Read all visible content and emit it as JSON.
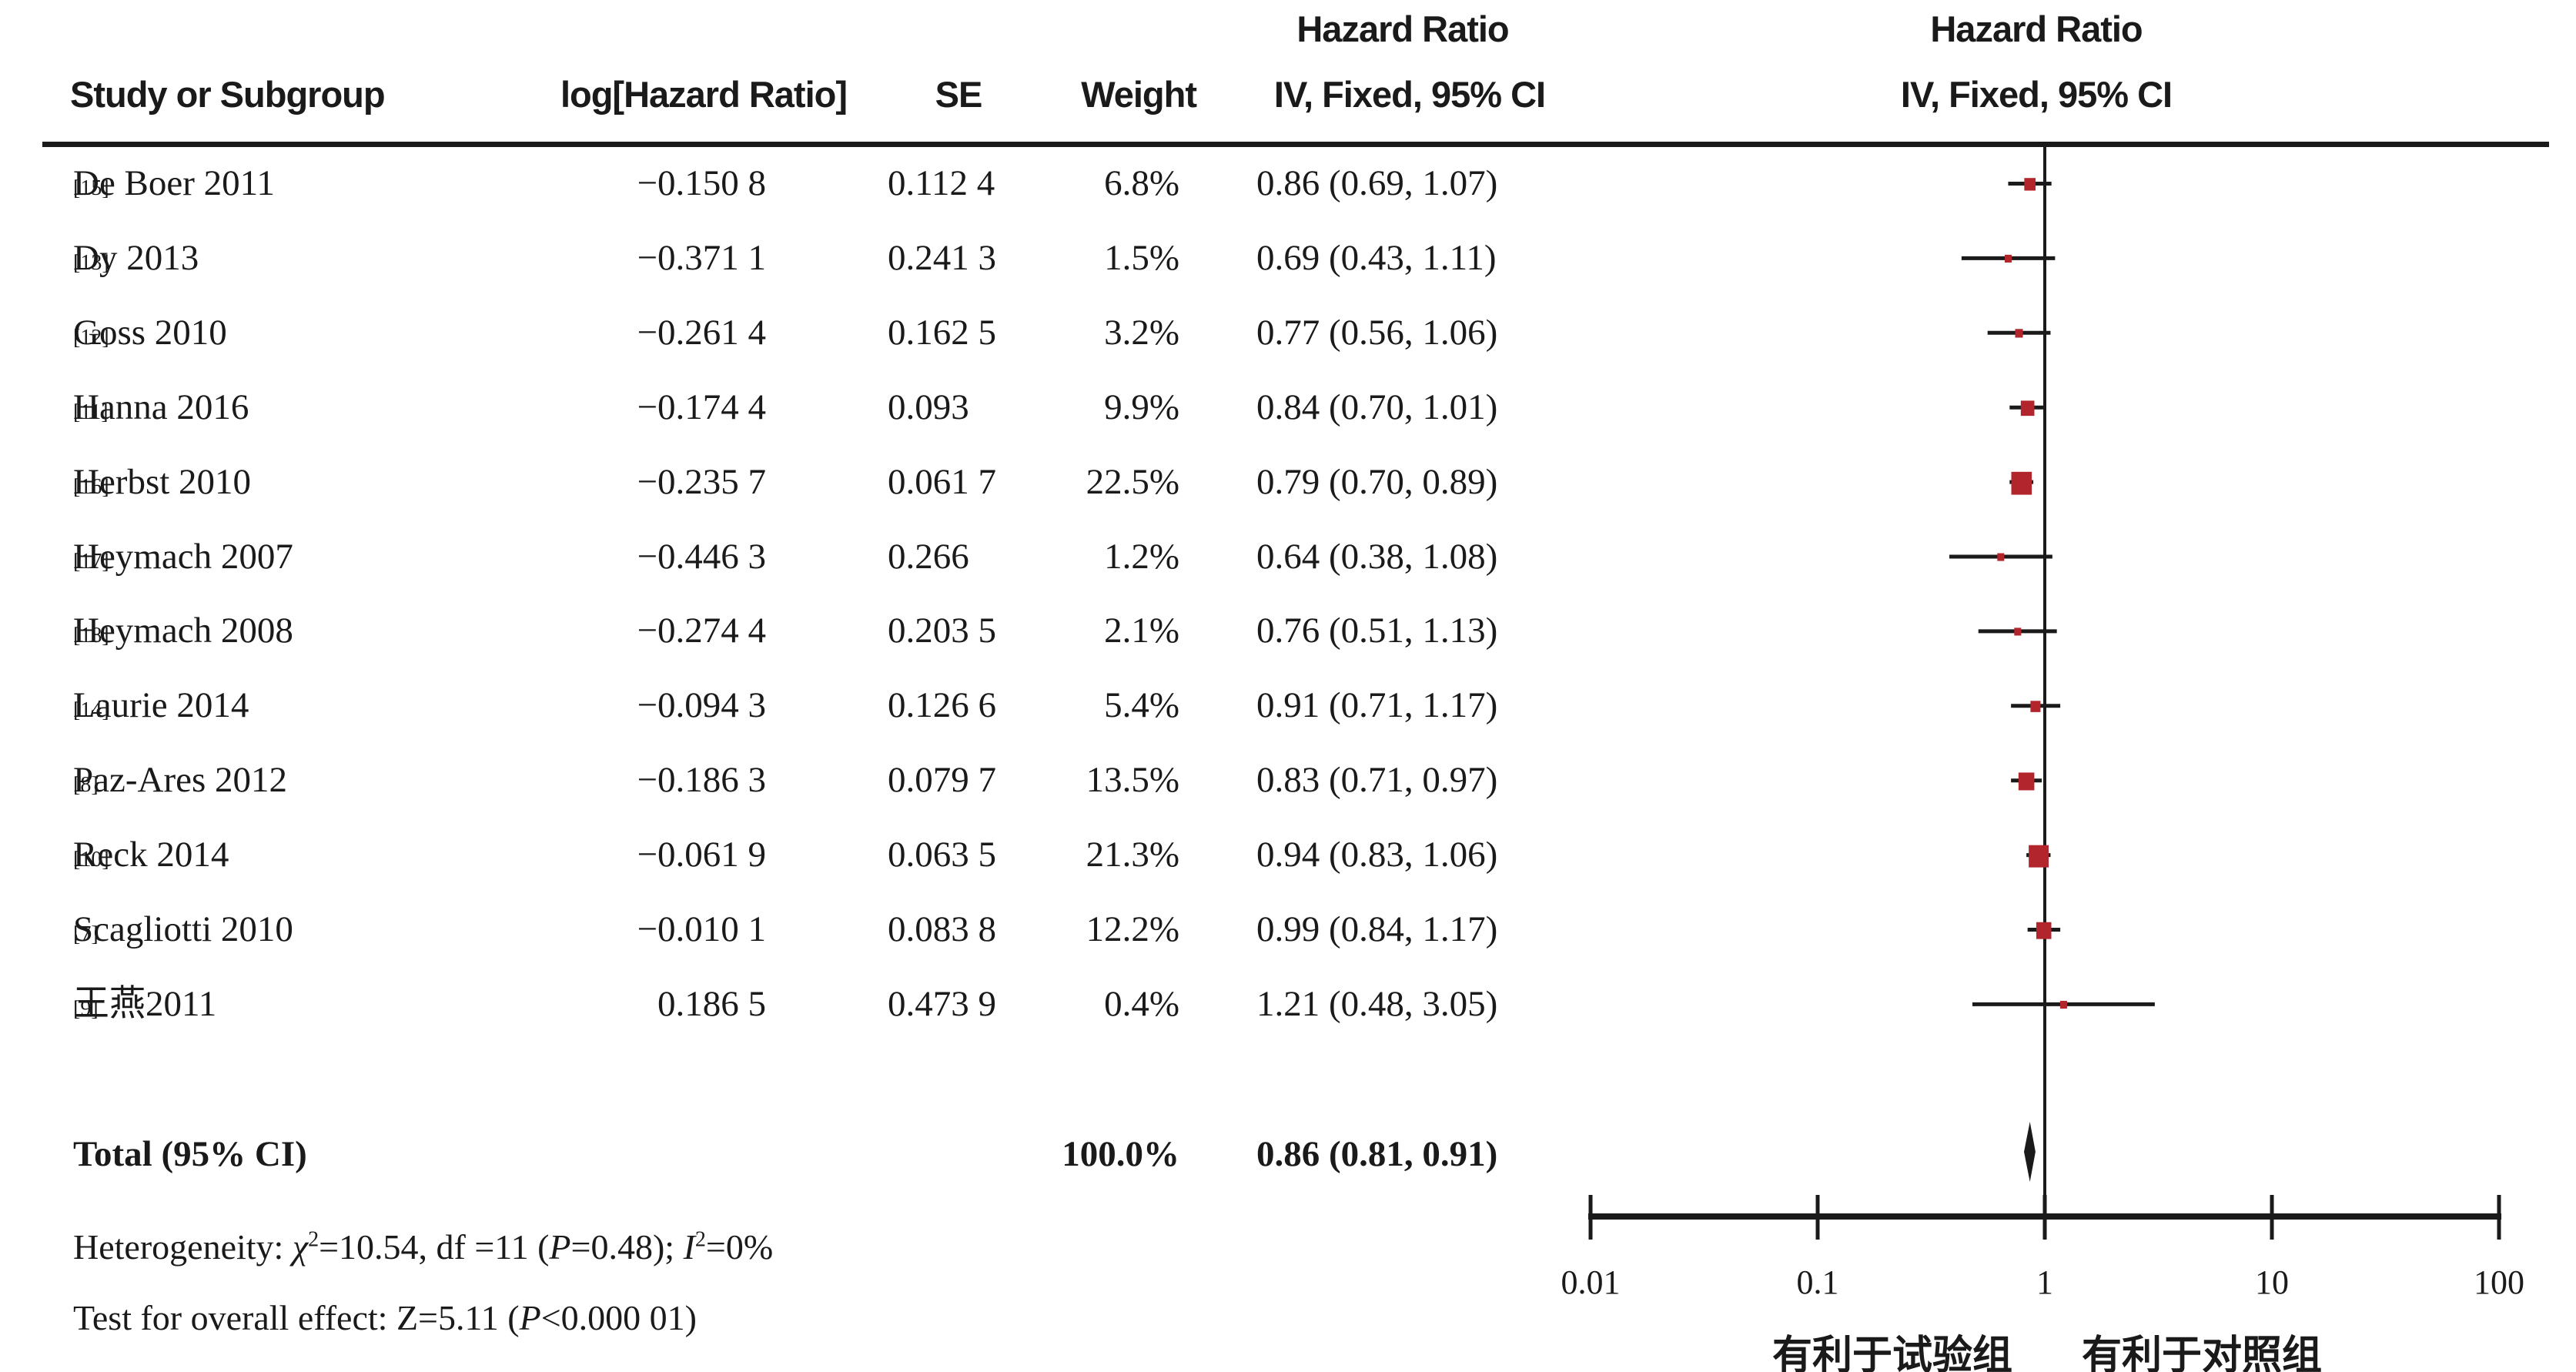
{
  "panels": {
    "left_title": "Hazard Ratio",
    "left_subtitle": "IV, Fixed, 95% CI",
    "right_title": "Hazard Ratio",
    "right_subtitle": "IV, Fixed, 95% CI"
  },
  "columns": {
    "study": "Study or Subgroup",
    "log_hr": "log[Hazard Ratio]",
    "se": "SE",
    "weight": "Weight",
    "ci": "IV, Fixed, 95% CI"
  },
  "total": {
    "label": "Total (95% CI)",
    "weight_text": "100.0%",
    "ci_text": "0.86 (0.81, 0.91)",
    "hr": 0.86,
    "ci_low": 0.81,
    "ci_high": 0.91
  },
  "footer": {
    "heterogeneity": [
      {
        "t": "Heterogeneity: "
      },
      {
        "t": "χ",
        "i": true
      },
      {
        "t": "2",
        "sup": true
      },
      {
        "t": "=10.54, df =11 ("
      },
      {
        "t": "P",
        "i": true
      },
      {
        "t": "=0.48); "
      },
      {
        "t": "I",
        "i": true
      },
      {
        "t": "2",
        "sup": true
      },
      {
        "t": "=0%"
      }
    ],
    "overall": [
      {
        "t": "Test for overall effect: Z=5.11 ("
      },
      {
        "t": "P",
        "i": true
      },
      {
        "t": "<0.000 01)"
      }
    ]
  },
  "chart_data": {
    "type": "scatter",
    "subtype": "forest_plot",
    "title": "Hazard Ratio",
    "model": "IV, Fixed, 95% CI",
    "x_scale": "log10",
    "xlim": [
      0.01,
      100
    ],
    "x_ticks": [
      0.01,
      0.1,
      1,
      10,
      100
    ],
    "x_tick_labels": [
      "0.01",
      "0.1",
      "1",
      "10",
      "100"
    ],
    "favors_left": "有利于试验组",
    "favors_right": "有利于对照组",
    "marker_color": "#b3252c",
    "line_color": "#1a1a1a",
    "studies": [
      {
        "study": "De Boer 2011",
        "ref": "[15]",
        "log_hr_text": "−0.150 8",
        "log_hr": -0.1508,
        "se_text": "0.112 4",
        "se": 0.1124,
        "weight_text": "6.8%",
        "weight_pct": 6.8,
        "ci_text": "0.86 (0.69, 1.07)",
        "hr": 0.86,
        "ci_low": 0.69,
        "ci_high": 1.07
      },
      {
        "study": "Dy 2013",
        "ref": "[13]",
        "log_hr_text": "−0.371 1",
        "log_hr": -0.3711,
        "se_text": "0.241 3",
        "se": 0.2413,
        "weight_text": "1.5%",
        "weight_pct": 1.5,
        "ci_text": "0.69 (0.43, 1.11)",
        "hr": 0.69,
        "ci_low": 0.43,
        "ci_high": 1.11
      },
      {
        "study": "Goss 2010",
        "ref": "[12]",
        "log_hr_text": "−0.261 4",
        "log_hr": -0.2614,
        "se_text": "0.162 5",
        "se": 0.1625,
        "weight_text": "3.2%",
        "weight_pct": 3.2,
        "ci_text": "0.77 (0.56, 1.06)",
        "hr": 0.77,
        "ci_low": 0.56,
        "ci_high": 1.06
      },
      {
        "study": "Hanna 2016",
        "ref": "[11]",
        "log_hr_text": "−0.174 4",
        "log_hr": -0.1744,
        "se_text": "0.093",
        "se": 0.093,
        "weight_text": "9.9%",
        "weight_pct": 9.9,
        "ci_text": "0.84 (0.70, 1.01)",
        "hr": 0.84,
        "ci_low": 0.7,
        "ci_high": 1.01
      },
      {
        "study": "Herbst 2010",
        "ref": "[16]",
        "log_hr_text": "−0.235 7",
        "log_hr": -0.2357,
        "se_text": "0.061 7",
        "se": 0.0617,
        "weight_text": "22.5%",
        "weight_pct": 22.5,
        "ci_text": "0.79 (0.70, 0.89)",
        "hr": 0.79,
        "ci_low": 0.7,
        "ci_high": 0.89
      },
      {
        "study": "Heymach 2007",
        "ref": "[17]",
        "log_hr_text": "−0.446 3",
        "log_hr": -0.4463,
        "se_text": "0.266",
        "se": 0.266,
        "weight_text": "1.2%",
        "weight_pct": 1.2,
        "ci_text": "0.64 (0.38, 1.08)",
        "hr": 0.64,
        "ci_low": 0.38,
        "ci_high": 1.08
      },
      {
        "study": "Heymach 2008",
        "ref": "[18]",
        "log_hr_text": "−0.274 4",
        "log_hr": -0.2744,
        "se_text": "0.203 5",
        "se": 0.2035,
        "weight_text": "2.1%",
        "weight_pct": 2.1,
        "ci_text": "0.76 (0.51, 1.13)",
        "hr": 0.76,
        "ci_low": 0.51,
        "ci_high": 1.13
      },
      {
        "study": "Laurie 2014",
        "ref": "[14]",
        "log_hr_text": "−0.094 3",
        "log_hr": -0.0943,
        "se_text": "0.126 6",
        "se": 0.1266,
        "weight_text": "5.4%",
        "weight_pct": 5.4,
        "ci_text": "0.91 (0.71, 1.17)",
        "hr": 0.91,
        "ci_low": 0.71,
        "ci_high": 1.17
      },
      {
        "study": "Paz-Ares 2012",
        "ref": "[8]",
        "log_hr_text": "−0.186 3",
        "log_hr": -0.1863,
        "se_text": "0.079 7",
        "se": 0.0797,
        "weight_text": "13.5%",
        "weight_pct": 13.5,
        "ci_text": "0.83 (0.71, 0.97)",
        "hr": 0.83,
        "ci_low": 0.71,
        "ci_high": 0.97
      },
      {
        "study": "Reck 2014",
        "ref": "[10]",
        "log_hr_text": "−0.061 9",
        "log_hr": -0.0619,
        "se_text": "0.063 5",
        "se": 0.0635,
        "weight_text": "21.3%",
        "weight_pct": 21.3,
        "ci_text": "0.94 (0.83, 1.06)",
        "hr": 0.94,
        "ci_low": 0.83,
        "ci_high": 1.06
      },
      {
        "study": "Scagliotti 2010",
        "ref": "[7]",
        "log_hr_text": "−0.010 1",
        "log_hr": -0.0101,
        "se_text": "0.083 8",
        "se": 0.0838,
        "weight_text": "12.2%",
        "weight_pct": 12.2,
        "ci_text": "0.99 (0.84, 1.17)",
        "hr": 0.99,
        "ci_low": 0.84,
        "ci_high": 1.17
      },
      {
        "study": "王燕2011",
        "ref": "[9]",
        "log_hr_text": "0.186 5",
        "log_hr": 0.1865,
        "se_text": "0.473 9",
        "se": 0.4739,
        "weight_text": "0.4%",
        "weight_pct": 0.4,
        "ci_text": "1.21 (0.48, 3.05)",
        "hr": 1.21,
        "ci_low": 0.48,
        "ci_high": 3.05
      }
    ],
    "total": {
      "label": "Total (95% CI)",
      "weight_pct": 100.0,
      "hr": 0.86,
      "ci_low": 0.81,
      "ci_high": 0.91
    },
    "heterogeneity_text": "Heterogeneity: χ²=10.54, df =11 (P=0.48); I²=0%",
    "overall_effect_text": "Test for overall effect: Z=5.11 (P<0.000 01)"
  }
}
